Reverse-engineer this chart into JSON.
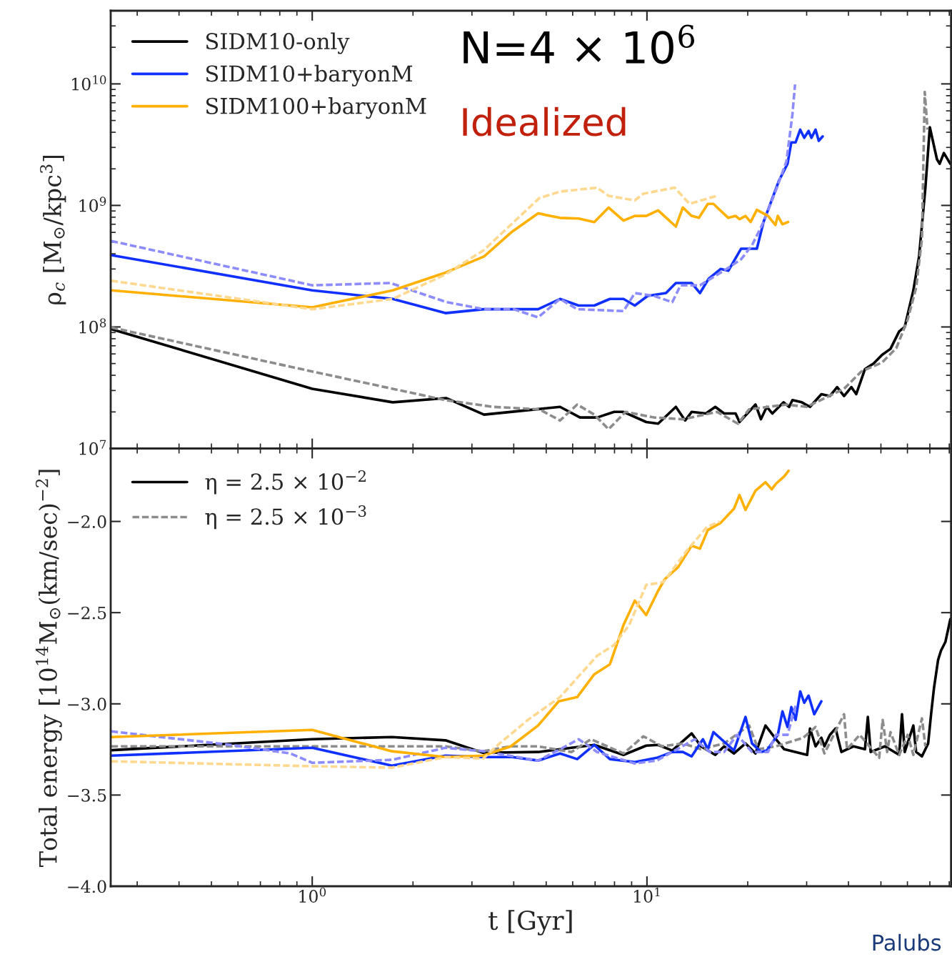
{
  "chart_data": [
    {
      "type": "line",
      "ylabel": "ρ$_{c}$ [M$_{⊙}$/kpc$^{3}$]",
      "log": "xy",
      "legend": "top left",
      "tick_labels": "y",
      "xlim": [
        0.25,
        81
      ],
      "ylim": [
        10000000.0,
        40000000000.0
      ],
      "yticks": [
        {
          "value": 10000000.0,
          "label": "10$^{7}$"
        },
        {
          "value": 100000000.0,
          "label": "10$^{8}$"
        },
        {
          "value": 1000000000.0,
          "label": "10$^{9}$"
        },
        {
          "value": 10000000000.0,
          "label": "10$^{10}$"
        }
      ],
      "annotations": [
        "N=4 × 10$^{6}$",
        "Idealized"
      ],
      "series": [
        {
          "name": "SIDM10-only",
          "color": "#000000",
          "line_style": "solid",
          "x": [
            0.251,
            1.0,
            1.74,
            2.51,
            3.26,
            5.5,
            6.31,
            7.1,
            7.98,
            8.51,
            9.95,
            10.8,
            12.2,
            13.0,
            13.6,
            15.0,
            16.0,
            17.0,
            18.4,
            18.9,
            21.1,
            21.9,
            22.8,
            23.7,
            25.6,
            26.6,
            27.2,
            29.0,
            30.7,
            33.2,
            35.2,
            37.0,
            38.8,
            40.8,
            42.2,
            44.8,
            47.5,
            50.4,
            53.4,
            56.7,
            58.9,
            62.5,
            65.0,
            67.9,
            70.0,
            73.5,
            74.9,
            77.1,
            80.6
          ],
          "values": [
            96000000.0,
            31000000.0,
            24000000.0,
            26000000.0,
            19000000.0,
            22000000.0,
            18000000.0,
            18000000.0,
            20000000.0,
            20000000.0,
            16500000.0,
            16000000.0,
            22000000.0,
            17000000.0,
            20000000.0,
            19400000.0,
            22000000.0,
            19400000.0,
            19400000.0,
            16500000.0,
            23000000.0,
            17400000.0,
            22000000.0,
            19400000.0,
            24000000.0,
            22000000.0,
            25000000.0,
            24000000.0,
            22000000.0,
            28000000.0,
            27000000.0,
            32000000.0,
            27000000.0,
            32000000.0,
            28000000.0,
            45000000.0,
            50000000.0,
            59000000.0,
            66000000.0,
            92000000.0,
            100000000.0,
            200000000.0,
            380000000.0,
            1400000000.0,
            4400000000.0,
            2400000000.0,
            2200000000.0,
            2700000000.0,
            2200000000.0
          ]
        },
        {
          "color": "#8c8c8c",
          "line_style": "dashed",
          "x": [
            0.251,
            1.0,
            2.5,
            3.47,
            4.77,
            5.5,
            6.19,
            6.96,
            7.68,
            8.63,
            10.5,
            12.8,
            16.2,
            18.7,
            20.2,
            26.1,
            30.0,
            38.8,
            43.7,
            50.4,
            55.6,
            60.1,
            63.7,
            66.3,
            67.6,
            68.9
          ],
          "values": [
            99000000.0,
            43000000.0,
            25000000.0,
            22000000.0,
            21000000.0,
            17000000.0,
            23000000.0,
            19000000.0,
            14400000.0,
            20000000.0,
            18000000.0,
            17400000.0,
            20000000.0,
            16000000.0,
            21000000.0,
            23000000.0,
            22000000.0,
            31000000.0,
            43000000.0,
            51000000.0,
            67000000.0,
            115000000.0,
            210000000.0,
            530000000.0,
            8600000000.0,
            4200000000.0
          ]
        },
        {
          "name": "SIDM10+baryonM",
          "color": "#1030ff",
          "line_style": "solid",
          "x": [
            0.251,
            1.0,
            1.74,
            2.5,
            3.26,
            4.73,
            5.5,
            6.25,
            6.96,
            7.75,
            8.51,
            9.2,
            10.05,
            11.4,
            12.2,
            13.6,
            14.4,
            15.3,
            16.6,
            17.5,
            19.1,
            21.3,
            22.3,
            24.8,
            26.3,
            27.0,
            27.8,
            28.7,
            29.5,
            30.4,
            31.0,
            31.9,
            32.6,
            33.5
          ],
          "values": [
            390000000.0,
            200000000.0,
            170000000.0,
            130000000.0,
            140000000.0,
            140000000.0,
            170000000.0,
            150000000.0,
            150000000.0,
            170000000.0,
            170000000.0,
            150000000.0,
            180000000.0,
            190000000.0,
            230000000.0,
            230000000.0,
            190000000.0,
            250000000.0,
            300000000.0,
            290000000.0,
            440000000.0,
            440000000.0,
            730000000.0,
            1600000000.0,
            2200000000.0,
            3300000000.0,
            3300000000.0,
            4200000000.0,
            3600000000.0,
            4100000000.0,
            3600000000.0,
            4200000000.0,
            3400000000.0,
            3700000000.0
          ]
        },
        {
          "color": "#8c8cff",
          "line_style": "dashed",
          "x": [
            0.251,
            1.0,
            1.71,
            2.52,
            3.26,
            4.0,
            4.73,
            5.5,
            6.19,
            8.51,
            9.2,
            10.5,
            11.9,
            12.6,
            14.4,
            17.3,
            19.1,
            20.6,
            22.3,
            24.2,
            26.1,
            27.2,
            27.7
          ],
          "values": [
            510000000.0,
            220000000.0,
            230000000.0,
            160000000.0,
            140000000.0,
            140000000.0,
            120000000.0,
            170000000.0,
            140000000.0,
            135000000.0,
            190000000.0,
            180000000.0,
            160000000.0,
            220000000.0,
            220000000.0,
            300000000.0,
            360000000.0,
            470000000.0,
            730000000.0,
            1300000000.0,
            2300000000.0,
            5600000000.0,
            9900000000.0
          ]
        },
        {
          "name": "SIDM100+baryonM",
          "color": "#ffb000",
          "line_style": "solid",
          "x": [
            0.251,
            1.0,
            1.74,
            2.5,
            3.26,
            3.96,
            4.73,
            5.5,
            6.25,
            6.96,
            7.68,
            8.51,
            9.2,
            9.95,
            10.8,
            12.2,
            12.8,
            13.6,
            14.3,
            15.2,
            15.8,
            17.5,
            18.4,
            18.9,
            19.7,
            20.4,
            21.3,
            23.0,
            24.2,
            24.6,
            25.4,
            26.4
          ],
          "values": [
            200000000.0,
            145000000.0,
            200000000.0,
            280000000.0,
            380000000.0,
            610000000.0,
            860000000.0,
            790000000.0,
            780000000.0,
            730000000.0,
            960000000.0,
            750000000.0,
            820000000.0,
            820000000.0,
            910000000.0,
            670000000.0,
            960000000.0,
            820000000.0,
            790000000.0,
            1030000000.0,
            1030000000.0,
            790000000.0,
            820000000.0,
            770000000.0,
            820000000.0,
            730000000.0,
            920000000.0,
            820000000.0,
            690000000.0,
            820000000.0,
            700000000.0,
            730000000.0
          ]
        },
        {
          "color": "#ffd890",
          "line_style": "dashed",
          "x": [
            0.251,
            1.0,
            1.74,
            2.5,
            3.26,
            4.77,
            5.5,
            7.1,
            7.68,
            9.2,
            9.76,
            12.1,
            13.4,
            16.2
          ],
          "values": [
            240000000.0,
            140000000.0,
            170000000.0,
            270000000.0,
            430000000.0,
            1150000000.0,
            1300000000.0,
            1400000000.0,
            1200000000.0,
            1100000000.0,
            1250000000.0,
            1400000000.0,
            1030000000.0,
            1200000000.0
          ]
        }
      ]
    },
    {
      "type": "line",
      "xlabel": "t [Gyr]",
      "ylabel": "Total energy [10$^{14}$M$_{⊙}$(km/sec)$^{−2}$]",
      "log": "x",
      "legend": "top left",
      "xlim": [
        0.25,
        81
      ],
      "ylim": [
        -4.0,
        -1.6
      ],
      "xticks": [
        {
          "value": 1,
          "label": "10$^{0}$"
        },
        {
          "value": 10,
          "label": "10$^{1}$"
        }
      ],
      "yticks": [
        {
          "value": -4.0,
          "label": "−4.0"
        },
        {
          "value": -3.5,
          "label": "−3.5"
        },
        {
          "value": -3.0,
          "label": "−3.0"
        },
        {
          "value": -2.5,
          "label": "−2.5"
        },
        {
          "value": -2.0,
          "label": "−2.0"
        }
      ],
      "annotations": [
        "Palubs"
      ],
      "series": [
        {
          "name": "η = 2.5 × 10$^{−2}$",
          "color": "#000000",
          "line_style": "solid",
          "x": [
            0.251,
            1.0,
            1.73,
            2.5,
            3.24,
            4.73,
            5.95,
            6.96,
            8.51,
            9.95,
            10.8,
            11.9,
            13.6,
            14.5,
            16.0,
            17.0,
            18.2,
            19.7,
            21.1,
            22.6,
            24.3,
            25.7,
            27.8,
            30.1,
            30.7,
            31.9,
            33.2,
            33.9,
            35.2,
            36.6,
            38.1,
            41.4,
            44.8,
            45.7,
            46.6,
            51.4,
            56.7,
            57.8,
            58.9,
            62.5,
            63.7,
            66.3,
            69.2,
            70.6,
            72.0,
            74.1,
            75.6,
            77.9,
            80.6
          ],
          "values": [
            -3.254,
            -3.194,
            -3.182,
            -3.2,
            -3.268,
            -3.264,
            -3.241,
            -3.225,
            -3.28,
            -3.229,
            -3.225,
            -3.256,
            -3.162,
            -3.233,
            -3.28,
            -3.233,
            -3.272,
            -3.217,
            -3.272,
            -3.119,
            -3.194,
            -3.249,
            -3.264,
            -3.28,
            -3.135,
            -3.233,
            -3.186,
            -3.233,
            -3.17,
            -3.135,
            -3.264,
            -3.233,
            -3.249,
            -3.072,
            -3.264,
            -3.233,
            -3.28,
            -3.057,
            -3.264,
            -3.119,
            -3.264,
            -3.288,
            -3.217,
            -3.057,
            -2.916,
            -2.759,
            -2.708,
            -2.661,
            -2.536
          ]
        },
        {
          "name": "η = 2.5 × 10$^{−3}$",
          "color": "#8c8c8c",
          "line_style": "dashed",
          "x": [
            0.251,
            1.0,
            2.5,
            3.24,
            3.9,
            4.73,
            5.95,
            6.8,
            8.51,
            9.76,
            11.1,
            12.8,
            14.5,
            17.0,
            20.2,
            21.5,
            24.3,
            29.3,
            31.9,
            33.9,
            38.8,
            39.6,
            43.2,
            49.4,
            50.6,
            52.2,
            53.4,
            56.7,
            60.1,
            62.5,
            66.3,
            67.9
          ],
          "values": [
            -3.233,
            -3.233,
            -3.233,
            -3.26,
            -3.233,
            -3.233,
            -3.264,
            -3.194,
            -3.272,
            -3.178,
            -3.233,
            -3.217,
            -3.249,
            -3.217,
            -3.119,
            -3.249,
            -3.233,
            -3.186,
            -3.127,
            -3.272,
            -3.057,
            -3.249,
            -3.17,
            -3.296,
            -3.088,
            -3.264,
            -3.155,
            -3.28,
            -3.17,
            -3.28,
            -3.08,
            -3.233
          ]
        },
        {
          "color": "#1030ff",
          "line_style": "solid",
          "x": [
            0.251,
            1.0,
            1.73,
            2.5,
            3.24,
            3.96,
            4.73,
            5.5,
            6.19,
            6.96,
            7.75,
            9.2,
            10.7,
            11.9,
            12.8,
            13.6,
            14.7,
            15.2,
            15.8,
            18.2,
            19.7,
            20.6,
            21.9,
            22.8,
            24.6,
            25.4,
            26.3,
            27.0,
            27.8,
            28.7,
            29.5,
            30.4,
            31.6,
            33.2
          ],
          "values": [
            -3.284,
            -3.241,
            -3.339,
            -3.284,
            -3.292,
            -3.292,
            -3.311,
            -3.272,
            -3.303,
            -3.225,
            -3.303,
            -3.319,
            -3.296,
            -3.264,
            -3.264,
            -3.288,
            -3.194,
            -3.249,
            -3.155,
            -3.256,
            -3.072,
            -3.217,
            -3.264,
            -3.256,
            -3.17,
            -3.041,
            -3.127,
            -3.018,
            -3.088,
            -2.932,
            -2.994,
            -2.955,
            -3.057,
            -2.986
          ]
        },
        {
          "color": "#8c8cff",
          "line_style": "dashed",
          "x": [
            0.251,
            0.57,
            0.86,
            1.0,
            1.73,
            2.5,
            3.24,
            4.73,
            5.5,
            6.25,
            7.1,
            9.2,
            10.7,
            11.9,
            13.9,
            15.4,
            17.0,
            18.6,
            20.6,
            23.0,
            24.3,
            26.3,
            27.8
          ],
          "values": [
            -3.151,
            -3.225,
            -3.272,
            -3.323,
            -3.307,
            -3.241,
            -3.26,
            -3.311,
            -3.249,
            -3.194,
            -3.264,
            -3.327,
            -3.311,
            -3.264,
            -3.194,
            -3.264,
            -3.264,
            -3.17,
            -3.264,
            -3.264,
            -3.17,
            -3.17,
            -3.01
          ]
        },
        {
          "color": "#ffb000",
          "line_style": "solid",
          "x": [
            0.251,
            1.0,
            1.73,
            2.5,
            3.24,
            3.92,
            4.73,
            5.45,
            6.19,
            6.96,
            7.75,
            8.51,
            9.2,
            9.95,
            10.8,
            11.3,
            12.4,
            13.6,
            14.4,
            15.2,
            16.6,
            18.2,
            18.9,
            19.7,
            21.1,
            22.6,
            23.6,
            24.3,
            25.7,
            26.5
          ],
          "values": [
            -3.182,
            -3.143,
            -3.26,
            -3.292,
            -3.284,
            -3.233,
            -3.119,
            -2.986,
            -2.963,
            -2.838,
            -2.783,
            -2.568,
            -2.434,
            -2.513,
            -2.38,
            -2.317,
            -2.25,
            -2.133,
            -2.149,
            -2.047,
            -2.008,
            -1.93,
            -1.855,
            -1.937,
            -1.832,
            -1.785,
            -1.824,
            -1.793,
            -1.753,
            -1.722
          ]
        },
        {
          "color": "#ffd890",
          "line_style": "dashed",
          "x": [
            0.251,
            1.0,
            1.73,
            2.5,
            3.24,
            3.63,
            4.41,
            5.5,
            7.1,
            7.98,
            8.85,
            9.95,
            11.2,
            13.1,
            15.1,
            16.5
          ],
          "values": [
            -3.315,
            -3.342,
            -3.35,
            -3.292,
            -3.3,
            -3.217,
            -3.088,
            -2.963,
            -2.736,
            -2.677,
            -2.568,
            -2.348,
            -2.333,
            -2.164,
            -2.031,
            -2.0
          ]
        }
      ]
    }
  ]
}
